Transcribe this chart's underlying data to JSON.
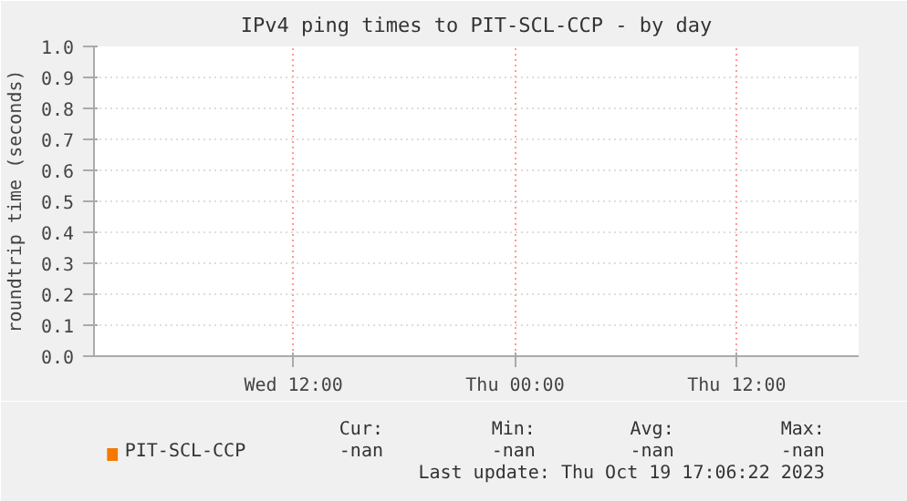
{
  "chart_data": {
    "type": "line",
    "title": "IPv4 ping times to PIT-SCL-CCP - by day",
    "ylabel": "roundtrip time (seconds)",
    "categories": [
      null,
      "Wed 12:00",
      null,
      "Thu 00:00",
      null,
      "Thu 12:00",
      null
    ],
    "ylim": [
      0,
      1.0
    ],
    "yticks": [
      {
        "value": 0,
        "label": "0.0"
      },
      {
        "value": 0.1,
        "label": "0.1"
      },
      {
        "value": 0.2,
        "label": "0.2"
      },
      {
        "value": 0.3,
        "label": "0.3"
      },
      {
        "value": 0.4,
        "label": "0.4"
      },
      {
        "value": 0.5,
        "label": "0.5"
      },
      {
        "value": 0.6,
        "label": "0.6"
      },
      {
        "value": 0.7,
        "label": "0.7"
      },
      {
        "value": 0.8,
        "label": "0.8"
      },
      {
        "value": 0.9,
        "label": "0.9"
      },
      {
        "value": 1.0,
        "label": "1.0"
      }
    ],
    "series": [
      {
        "name": "PIT-SCL-CCP",
        "color": "#f57900",
        "values": [
          null,
          null,
          null,
          null,
          null,
          null,
          null
        ]
      }
    ],
    "grid": true,
    "legend": "bottom left",
    "annotations": [
      "Cur:",
      "-nan",
      "Min:",
      "-nan",
      "Avg:",
      "-nan",
      "Max:",
      "-nan",
      "Last update: Thu Oct 19 17:06:22 2023"
    ]
  }
}
